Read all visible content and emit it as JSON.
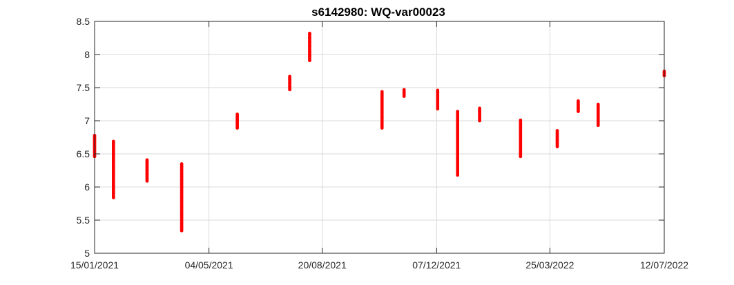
{
  "chart_data": {
    "type": "scatter",
    "title": "s6142980: WQ-var00023",
    "xlabel": "",
    "ylabel": "",
    "x_axis": {
      "type": "date",
      "range": [
        "2021-01-15",
        "2022-07-12"
      ],
      "tick_values": [
        "2021-01-15",
        "2021-05-04",
        "2021-08-20",
        "2021-12-07",
        "2022-03-25",
        "2022-07-12"
      ],
      "tick_labels": [
        "15/01/2021",
        "04/05/2021",
        "20/08/2021",
        "07/12/2021",
        "25/03/2022",
        "12/07/2022"
      ]
    },
    "y_axis": {
      "range": [
        5,
        8.5
      ],
      "tick_values": [
        5,
        5.5,
        6,
        6.5,
        7,
        7.5,
        8,
        8.5
      ],
      "tick_labels": [
        "5",
        "5.5",
        "6",
        "6.5",
        "7",
        "7.5",
        "8",
        "8.5"
      ]
    },
    "grid": true,
    "marker_color": "#ff0000",
    "series": [
      {
        "clusters": [
          {
            "x": "2021-01-15",
            "min": 6.46,
            "max": 6.78,
            "values": [
              6.46,
              6.55,
              6.6,
              6.65,
              6.7,
              6.75,
              6.78
            ]
          },
          {
            "x": "2021-01-33",
            "min": 5.84,
            "max": 6.69,
            "values": [
              5.84,
              6.02,
              6.2,
              6.25,
              6.3,
              6.35,
              6.4,
              6.45,
              6.5,
              6.55,
              6.6,
              6.65,
              6.69
            ]
          },
          {
            "x": "2021-03-06",
            "min": 6.09,
            "max": 6.41,
            "values": [
              6.09,
              6.12,
              6.2,
              6.25,
              6.3,
              6.35,
              6.38,
              6.41
            ]
          },
          {
            "x": "2021-04-08",
            "min": 5.34,
            "max": 6.35,
            "values": [
              5.34,
              5.38,
              5.45,
              5.58,
              5.7,
              5.78,
              5.85,
              5.92,
              6.0,
              6.05,
              6.1,
              6.15,
              6.2,
              6.25,
              6.3,
              6.35
            ]
          },
          {
            "x": "2021-05-31",
            "min": 6.89,
            "max": 7.1,
            "values": [
              6.89,
              6.93,
              6.97,
              7.01,
              7.05,
              7.1
            ]
          },
          {
            "x": "2021-07-20",
            "min": 7.47,
            "max": 7.67,
            "values": [
              7.47,
              7.52,
              7.57,
              7.62,
              7.67
            ]
          },
          {
            "x": "2021-08-08",
            "min": 7.91,
            "max": 8.32,
            "values": [
              7.91,
              7.98,
              8.05,
              8.12,
              8.18,
              8.25,
              8.32
            ]
          },
          {
            "x": "2021-10-16",
            "min": 6.89,
            "max": 7.44,
            "values": [
              6.89,
              6.94,
              6.98,
              7.05,
              7.12,
              7.18,
              7.24,
              7.3,
              7.35,
              7.4,
              7.44
            ]
          },
          {
            "x": "2021-11-06",
            "min": 7.37,
            "max": 7.47,
            "values": [
              7.37,
              7.4,
              7.43,
              7.47
            ]
          },
          {
            "x": "2021-12-08",
            "min": 7.18,
            "max": 7.46,
            "values": [
              7.18,
              7.24,
              7.3,
              7.36,
              7.42,
              7.46
            ]
          },
          {
            "x": "2021-12-27",
            "min": 6.18,
            "max": 7.14,
            "values": [
              6.18,
              6.22,
              6.25,
              6.43,
              6.66,
              6.78,
              6.85,
              6.9,
              6.95,
              7.0,
              7.05,
              7.1,
              7.14
            ]
          },
          {
            "x": "2022-01-17",
            "min": 7.0,
            "max": 7.19,
            "values": [
              7.0,
              7.05,
              7.1,
              7.15,
              7.19
            ]
          },
          {
            "x": "2022-02-25",
            "min": 6.46,
            "max": 7.01,
            "values": [
              6.46,
              6.52,
              6.63,
              6.68,
              6.78,
              6.9,
              6.95,
              7.01
            ]
          },
          {
            "x": "2022-04-01",
            "min": 6.61,
            "max": 6.85,
            "values": [
              6.61,
              6.66,
              6.71,
              6.76,
              6.8,
              6.85
            ]
          },
          {
            "x": "2022-04-21",
            "min": 7.14,
            "max": 7.3,
            "values": [
              7.14,
              7.2,
              7.25,
              7.3
            ]
          },
          {
            "x": "2022-05-10",
            "min": 6.93,
            "max": 7.25,
            "values": [
              6.93,
              6.98,
              7.04,
              7.1,
              7.16,
              7.2,
              7.25
            ]
          },
          {
            "x": "2022-07-12",
            "min": 7.68,
            "max": 7.75,
            "values": [
              7.68,
              7.72,
              7.75
            ]
          }
        ]
      }
    ]
  }
}
